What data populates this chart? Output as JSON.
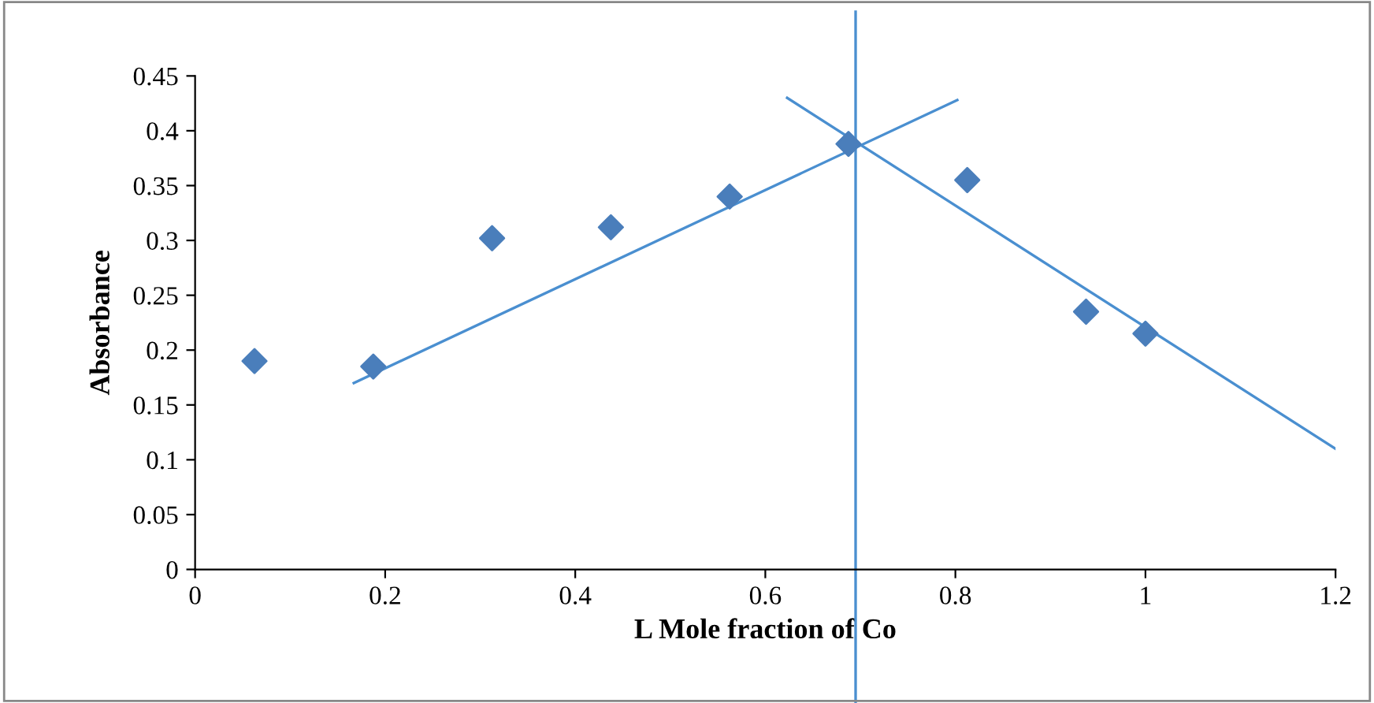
{
  "chart_data": {
    "type": "scatter",
    "xlabel": "L Mole fraction of Co",
    "ylabel": "Absorbance",
    "series": [
      {
        "color": "#4a7ebb",
        "marker": "diamond",
        "x": [
          0.0625,
          0.1875,
          0.3125,
          0.4375,
          0.5625,
          0.6875,
          0.8125,
          0.9375,
          1.0
        ],
        "values": [
          0.19,
          0.185,
          0.302,
          0.312,
          0.34,
          0.388,
          0.355,
          0.235,
          0.215
        ]
      },
      {
        "type": "line",
        "color": "#4a8fd0",
        "marker": "none",
        "x": [
          0.167,
          0.802
        ],
        "values": [
          0.17,
          0.428
        ]
      },
      {
        "type": "line",
        "color": "#4a8fd0",
        "marker": "none",
        "x": [
          0.623,
          1.2
        ],
        "values": [
          0.43,
          0.11
        ]
      }
    ],
    "ref_lines": [
      {
        "axis": "x",
        "value": 0.695,
        "color": "#4a8fd0"
      }
    ],
    "xlim": [
      0,
      1.2
    ],
    "xticks": [
      0,
      0.2,
      0.4,
      0.6,
      0.8,
      1,
      1.2
    ],
    "ylim": [
      0,
      0.45
    ],
    "yticks": [
      0,
      0.05,
      0.1,
      0.15,
      0.2,
      0.25,
      0.3,
      0.35,
      0.4,
      0.45
    ],
    "grid": false,
    "legend": false
  }
}
